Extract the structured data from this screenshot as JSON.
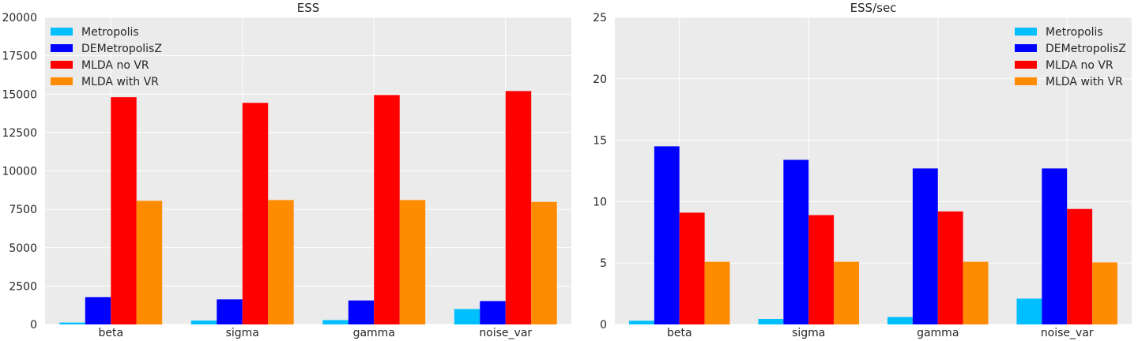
{
  "chart_data": [
    {
      "type": "bar",
      "title": "ESS",
      "xlabel": "",
      "ylabel": "",
      "categories": [
        "beta",
        "sigma",
        "gamma",
        "noise_var"
      ],
      "ylim": [
        0,
        20000
      ],
      "yticks": [
        "0",
        "2500",
        "5000",
        "7500",
        "10000",
        "12500",
        "15000",
        "17500",
        "20000"
      ],
      "grid": true,
      "legend_position": "top-left",
      "series": [
        {
          "name": "Metropolis",
          "color": "#00bfff",
          "values": [
            120,
            250,
            280,
            1000
          ]
        },
        {
          "name": "DEMetropolisZ",
          "color": "#0000ff",
          "values": [
            1780,
            1630,
            1560,
            1520
          ]
        },
        {
          "name": "MLDA no VR",
          "color": "#ff0000",
          "values": [
            14800,
            14430,
            14940,
            15200
          ]
        },
        {
          "name": "MLDA with VR",
          "color": "#ff8c00",
          "values": [
            8050,
            8100,
            8100,
            7980
          ]
        }
      ]
    },
    {
      "type": "bar",
      "title": "ESS/sec",
      "xlabel": "",
      "ylabel": "",
      "categories": [
        "beta",
        "sigma",
        "gamma",
        "noise_var"
      ],
      "ylim": [
        0,
        25
      ],
      "yticks": [
        "0",
        "5",
        "10",
        "15",
        "20",
        "25"
      ],
      "grid": true,
      "legend_position": "top-right",
      "series": [
        {
          "name": "Metropolis",
          "color": "#00bfff",
          "values": [
            0.3,
            0.45,
            0.6,
            2.1
          ]
        },
        {
          "name": "DEMetropolisZ",
          "color": "#0000ff",
          "values": [
            14.5,
            13.4,
            12.7,
            12.7
          ]
        },
        {
          "name": "MLDA no VR",
          "color": "#ff0000",
          "values": [
            9.1,
            8.9,
            9.2,
            9.4
          ]
        },
        {
          "name": "MLDA with VR",
          "color": "#ff8c00",
          "values": [
            5.1,
            5.1,
            5.1,
            5.05
          ]
        }
      ]
    }
  ]
}
